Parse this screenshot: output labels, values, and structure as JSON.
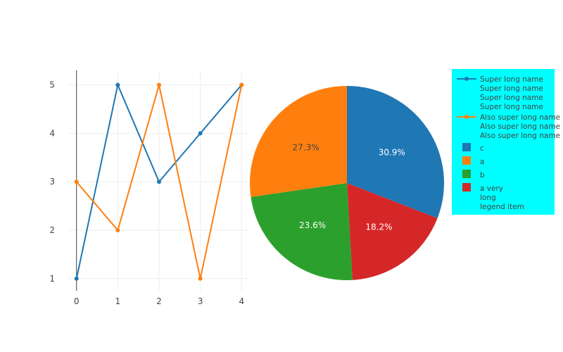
{
  "chart_data": [
    {
      "type": "line",
      "x": [
        0,
        1,
        2,
        3,
        4
      ],
      "xlim": [
        -0.2,
        4.2
      ],
      "ylim": [
        0.75,
        5.3
      ],
      "xticks": [
        "0",
        "1",
        "2",
        "3",
        "4"
      ],
      "yticks": [
        "1",
        "2",
        "3",
        "4",
        "5"
      ],
      "grid": true,
      "series": [
        {
          "name": "Super long name\nSuper long name\nSuper long name\nSuper long name",
          "values": [
            1,
            5,
            3,
            4,
            5
          ],
          "color": "#1f77b4"
        },
        {
          "name": "Also super long name\nAlso super long name\nAlso super long name",
          "values": [
            3,
            2,
            5,
            1,
            5
          ],
          "color": "#ff7f0e"
        }
      ]
    },
    {
      "type": "pie",
      "slices": [
        {
          "label": "c",
          "value": 30.9,
          "text": "30.9%",
          "color": "#1f77b4"
        },
        {
          "label": "a very\nlong\nlegend item",
          "value": 18.2,
          "text": "18.2%",
          "color": "#d62728"
        },
        {
          "label": "b",
          "value": 23.6,
          "text": "23.6%",
          "color": "#2ca02c"
        },
        {
          "label": "a",
          "value": 27.3,
          "text": "27.3%",
          "color": "#ff7f0e"
        }
      ],
      "legend_order": [
        "c",
        "a",
        "b",
        "a very\nlong\nlegend item"
      ]
    }
  ],
  "legend": {
    "placement": "right",
    "background": "#00ffff"
  }
}
